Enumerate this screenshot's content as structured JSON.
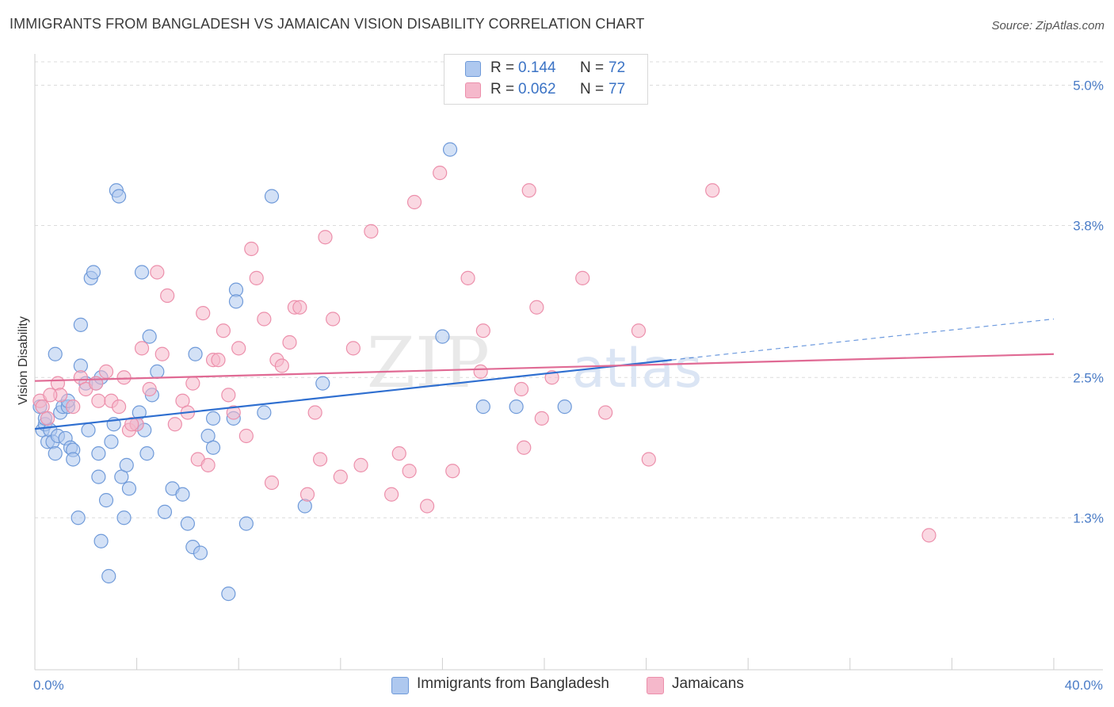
{
  "title": "IMMIGRANTS FROM BANGLADESH VS JAMAICAN VISION DISABILITY CORRELATION CHART",
  "source": "Source: ZipAtlas.com",
  "legend": {
    "rows": [
      {
        "r_label": "R =",
        "r_value": "0.144",
        "n_label": "N =",
        "n_value": "72"
      },
      {
        "r_label": "R =",
        "r_value": "0.062",
        "n_label": "N =",
        "n_value": "77"
      }
    ]
  },
  "bottom_legend": [
    "Immigrants from Bangladesh",
    "Jamaicans"
  ],
  "watermark": {
    "zip": "ZIP",
    "atlas": "atlas"
  },
  "colors": {
    "blue_fill": "#aec8ef",
    "blue_stroke": "#6f9ad9",
    "blue_line": "#2f6fd0",
    "pink_fill": "#f5b8cb",
    "pink_stroke": "#ec8fab",
    "pink_line": "#e06a94",
    "axis_text": "#4a7cc7",
    "grid": "#dcdcdc"
  },
  "chart_data": {
    "type": "scatter",
    "ylabel": "Vision Disability",
    "xlim": [
      0,
      40
    ],
    "ylim": [
      0.0,
      5.2
    ],
    "x_tick_labels": [
      {
        "value": 0,
        "label": "0.0%"
      },
      {
        "value": 40,
        "label": "40.0%"
      }
    ],
    "y_ticks": [
      {
        "value": 1.3,
        "label": "1.3%"
      },
      {
        "value": 2.5,
        "label": "2.5%"
      },
      {
        "value": 3.8,
        "label": "3.8%"
      },
      {
        "value": 5.0,
        "label": "5.0%"
      }
    ],
    "grid": "horizontal dashed",
    "legend_position": "top-center",
    "series": [
      {
        "name": "Immigrants from Bangladesh",
        "r": 0.144,
        "n": 72,
        "trend": {
          "x0": 0,
          "y0": 2.06,
          "x1": 25,
          "y1": 2.65,
          "dash_to_x": 40,
          "dash_to_y": 3.0
        },
        "points": [
          [
            0.2,
            2.25
          ],
          [
            0.3,
            2.05
          ],
          [
            0.4,
            2.1
          ],
          [
            0.5,
            1.95
          ],
          [
            0.6,
            2.05
          ],
          [
            0.7,
            1.95
          ],
          [
            0.8,
            2.7
          ],
          [
            0.8,
            1.85
          ],
          [
            0.9,
            2.0
          ],
          [
            1.0,
            2.2
          ],
          [
            1.1,
            2.25
          ],
          [
            1.2,
            1.98
          ],
          [
            1.3,
            2.25
          ],
          [
            1.4,
            1.9
          ],
          [
            1.5,
            1.88
          ],
          [
            1.5,
            1.8
          ],
          [
            1.7,
            1.3
          ],
          [
            1.8,
            2.6
          ],
          [
            1.8,
            2.95
          ],
          [
            2.0,
            2.45
          ],
          [
            2.1,
            2.05
          ],
          [
            2.2,
            3.35
          ],
          [
            2.4,
            2.45
          ],
          [
            2.5,
            1.85
          ],
          [
            2.5,
            1.65
          ],
          [
            2.6,
            2.5
          ],
          [
            2.6,
            1.1
          ],
          [
            2.8,
            1.45
          ],
          [
            2.9,
            0.8
          ],
          [
            3.0,
            1.95
          ],
          [
            3.1,
            2.1
          ],
          [
            3.2,
            4.1
          ],
          [
            3.3,
            4.05
          ],
          [
            3.4,
            1.65
          ],
          [
            3.5,
            1.3
          ],
          [
            3.6,
            1.75
          ],
          [
            3.7,
            1.55
          ],
          [
            4.0,
            2.1
          ],
          [
            4.1,
            2.2
          ],
          [
            4.2,
            3.4
          ],
          [
            4.4,
            1.85
          ],
          [
            4.5,
            2.85
          ],
          [
            4.6,
            2.35
          ],
          [
            4.8,
            2.55
          ],
          [
            5.1,
            1.35
          ],
          [
            5.4,
            1.55
          ],
          [
            5.8,
            1.5
          ],
          [
            6.0,
            1.25
          ],
          [
            6.2,
            1.05
          ],
          [
            6.3,
            2.7
          ],
          [
            6.5,
            1.0
          ],
          [
            6.8,
            2.0
          ],
          [
            7.0,
            2.15
          ],
          [
            7.0,
            1.9
          ],
          [
            7.6,
            0.65
          ],
          [
            7.8,
            2.15
          ],
          [
            7.9,
            3.25
          ],
          [
            7.9,
            3.15
          ],
          [
            8.3,
            1.25
          ],
          [
            9.0,
            2.2
          ],
          [
            9.3,
            4.05
          ],
          [
            10.6,
            1.4
          ],
          [
            11.3,
            2.45
          ],
          [
            16.0,
            2.85
          ],
          [
            16.3,
            4.45
          ],
          [
            17.6,
            2.25
          ],
          [
            18.9,
            2.25
          ],
          [
            20.8,
            2.25
          ],
          [
            2.3,
            3.4
          ],
          [
            0.4,
            2.15
          ],
          [
            1.3,
            2.3
          ],
          [
            4.3,
            2.05
          ]
        ]
      },
      {
        "name": "Jamaicans",
        "r": 0.062,
        "n": 77,
        "trend": {
          "x0": 0,
          "y0": 2.47,
          "x1": 40,
          "y1": 2.7
        },
        "points": [
          [
            0.2,
            2.3
          ],
          [
            0.3,
            2.25
          ],
          [
            0.5,
            2.15
          ],
          [
            0.9,
            2.45
          ],
          [
            1.0,
            2.35
          ],
          [
            1.5,
            2.25
          ],
          [
            1.8,
            2.5
          ],
          [
            2.0,
            2.4
          ],
          [
            2.4,
            2.45
          ],
          [
            2.5,
            2.3
          ],
          [
            2.8,
            2.55
          ],
          [
            3.0,
            2.3
          ],
          [
            3.3,
            2.25
          ],
          [
            3.5,
            2.5
          ],
          [
            3.7,
            2.05
          ],
          [
            4.0,
            2.1
          ],
          [
            4.2,
            2.75
          ],
          [
            4.5,
            2.4
          ],
          [
            4.8,
            3.4
          ],
          [
            5.0,
            2.7
          ],
          [
            5.2,
            3.2
          ],
          [
            5.5,
            2.1
          ],
          [
            5.8,
            2.3
          ],
          [
            6.0,
            2.2
          ],
          [
            6.2,
            2.45
          ],
          [
            6.4,
            1.8
          ],
          [
            6.6,
            3.05
          ],
          [
            6.8,
            1.75
          ],
          [
            7.0,
            2.65
          ],
          [
            7.2,
            2.65
          ],
          [
            7.4,
            2.9
          ],
          [
            7.6,
            2.35
          ],
          [
            7.8,
            2.2
          ],
          [
            8.0,
            2.75
          ],
          [
            8.3,
            2.0
          ],
          [
            8.5,
            3.6
          ],
          [
            8.7,
            3.35
          ],
          [
            9.0,
            3.0
          ],
          [
            9.3,
            1.6
          ],
          [
            9.5,
            2.65
          ],
          [
            9.7,
            2.6
          ],
          [
            10.0,
            2.8
          ],
          [
            10.2,
            3.1
          ],
          [
            10.4,
            3.1
          ],
          [
            10.7,
            1.5
          ],
          [
            11.0,
            2.2
          ],
          [
            11.2,
            1.8
          ],
          [
            11.4,
            3.7
          ],
          [
            11.7,
            3.0
          ],
          [
            12.0,
            1.65
          ],
          [
            12.5,
            2.75
          ],
          [
            12.8,
            1.75
          ],
          [
            13.2,
            3.75
          ],
          [
            14.0,
            1.5
          ],
          [
            14.3,
            1.85
          ],
          [
            14.7,
            1.7
          ],
          [
            14.9,
            4.0
          ],
          [
            15.4,
            1.4
          ],
          [
            15.9,
            4.25
          ],
          [
            16.4,
            1.7
          ],
          [
            17.0,
            3.35
          ],
          [
            17.5,
            2.55
          ],
          [
            17.6,
            2.9
          ],
          [
            19.1,
            2.4
          ],
          [
            19.2,
            1.9
          ],
          [
            19.4,
            4.1
          ],
          [
            19.7,
            3.1
          ],
          [
            19.9,
            2.15
          ],
          [
            20.3,
            2.5
          ],
          [
            21.5,
            3.35
          ],
          [
            22.4,
            2.2
          ],
          [
            23.7,
            2.9
          ],
          [
            24.1,
            1.8
          ],
          [
            26.6,
            4.1
          ],
          [
            35.1,
            1.15
          ],
          [
            0.6,
            2.35
          ],
          [
            3.8,
            2.1
          ]
        ]
      }
    ]
  }
}
